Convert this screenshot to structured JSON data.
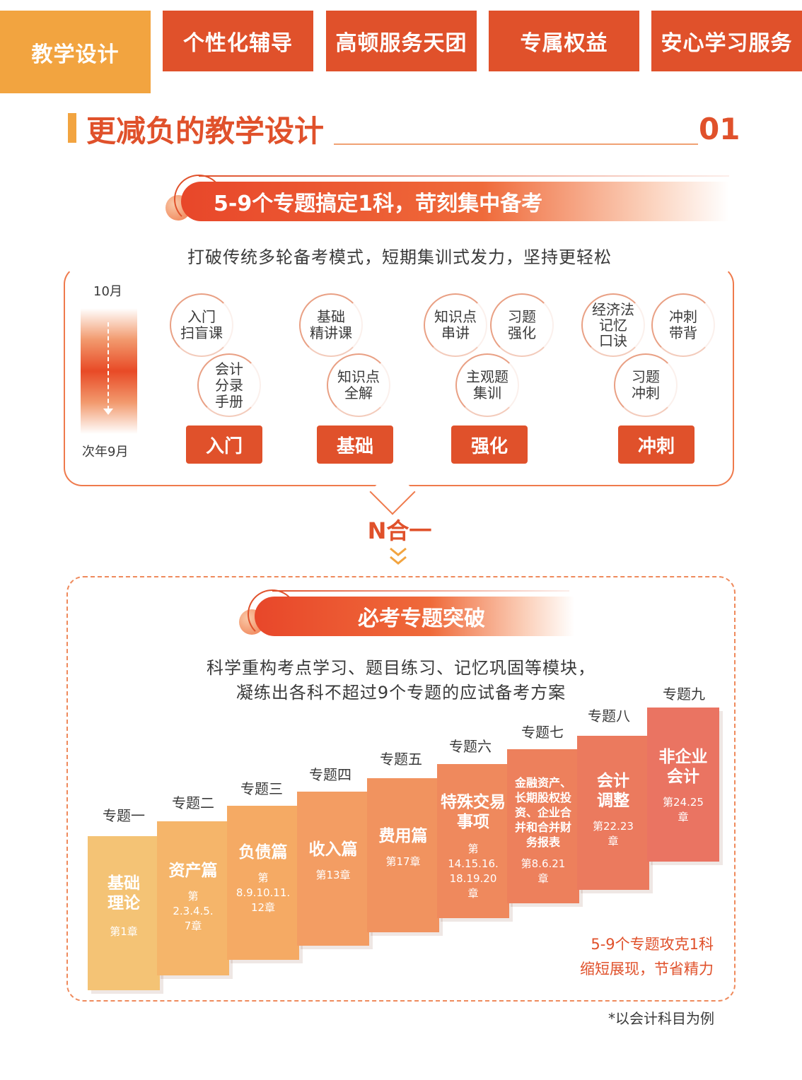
{
  "tabs": [
    {
      "label": "教学设计",
      "active": true
    },
    {
      "label": "个性化辅导",
      "active": false
    },
    {
      "label": "高顿服务天团",
      "active": false
    },
    {
      "label": "专属权益",
      "active": false
    },
    {
      "label": "安心学习服务",
      "active": false
    }
  ],
  "section": {
    "title": "更减负的教学设计",
    "number": "01"
  },
  "banner1": {
    "title": "5-9个专题搞定1科，苛刻集中备考",
    "subtitle": "打破传统多轮备考模式，短期集训式发力，坚持更轻松"
  },
  "timeline": {
    "start": "10月",
    "end": "次年9月"
  },
  "stages": [
    {
      "name": "入门",
      "courses": [
        "入门\n扫盲课",
        "会计\n分录\n手册"
      ]
    },
    {
      "name": "基础",
      "courses": [
        "基础\n精讲课",
        "知识点\n全解"
      ]
    },
    {
      "name": "强化",
      "courses": [
        "知识点\n串讲",
        "习题\n强化",
        "主观题\n集训"
      ]
    },
    {
      "name": "冲刺",
      "courses": [
        "经济法\n记忆\n口诀",
        "冲刺\n带背",
        "习题\n冲刺"
      ]
    }
  ],
  "merge_label": "N合一",
  "banner2": {
    "title": "必考专题突破",
    "subtitle_line1": "科学重构考点学习、题目练习、记忆巩固等模块，",
    "subtitle_line2": "凝练出各科不超过9个专题的应试备考方案"
  },
  "topics": [
    {
      "label": "专题一",
      "name": "基础\n理论",
      "chapters": "第1章",
      "color": "#f4c375"
    },
    {
      "label": "专题二",
      "name": "资产篇",
      "chapters": "第\n2.3.4.5.\n7章",
      "color": "#f5b56a"
    },
    {
      "label": "专题三",
      "name": "负债篇",
      "chapters": "第\n8.9.10.11.\n12章",
      "color": "#f5aa64"
    },
    {
      "label": "专题四",
      "name": "收入篇",
      "chapters": "第13章",
      "color": "#f39d63"
    },
    {
      "label": "专题五",
      "name": "费用篇",
      "chapters": "第17章",
      "color": "#f1935f"
    },
    {
      "label": "专题六",
      "name": "特殊交易\n事项",
      "chapters": "第\n14.15.16.\n18.19.20\n章",
      "color": "#ef895d"
    },
    {
      "label": "专题七",
      "name": "金融资产、\n长期股权投\n资、企业合\n并和合并财\n务报表",
      "chapters": "第8.6.21\n章",
      "color": "#ed805c"
    },
    {
      "label": "专题八",
      "name": "会计\n调整",
      "chapters": "第22.23\n章",
      "color": "#eb7a5e"
    },
    {
      "label": "专题九",
      "name": "非企业\n会计",
      "chapters": "第24.25\n章",
      "color": "#ea7462"
    }
  ],
  "callout": {
    "line1": "5-9个专题攻克1科",
    "line2": "缩短展现，节省精力"
  },
  "footnote": "*以会计科目为例"
}
